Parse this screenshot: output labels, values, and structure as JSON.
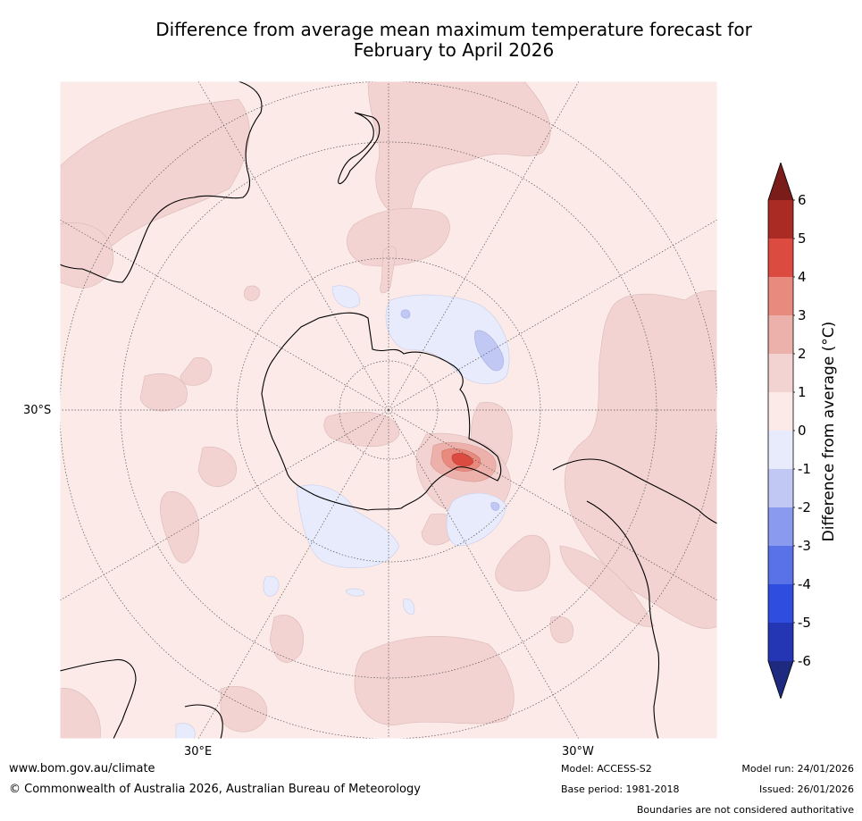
{
  "title": {
    "line1": "Difference from average mean maximum temperature forecast for",
    "line2": "February to April 2026"
  },
  "map": {
    "projection": "south-polar-stereographic",
    "lat_label": "30°S",
    "lon_labels": {
      "east": "30°E",
      "west": "30°W"
    },
    "anomaly_regions": [
      {
        "region": "most of domain",
        "range": "0 to 1"
      },
      {
        "region": "Pacific Ocean east of New Zealand",
        "range": "1 to 2"
      },
      {
        "region": "South Pacific near South America",
        "range": "1 to 2"
      },
      {
        "region": "Antarctic Peninsula / Bellingshausen Sea",
        "range": "2 to 4"
      },
      {
        "region": "Ross Sea area",
        "range": "-1 to 0"
      },
      {
        "region": "Ross Sea embayment spot",
        "range": "-2 to -1"
      },
      {
        "region": "Weddell / East Antarctic coast",
        "range": "-1 to 0"
      }
    ]
  },
  "colorbar": {
    "label": "Difference from average (°C)",
    "ticks": [
      "6",
      "5",
      "4",
      "3",
      "2",
      "1",
      "0",
      "-1",
      "-2",
      "-3",
      "-4",
      "-5",
      "-6"
    ],
    "colors": {
      "over": "#7a1d1a",
      "b5_6": "#aa2b24",
      "b4_5": "#dc4b40",
      "b3_4": "#e88a7e",
      "b2_3": "#edb1ab",
      "b1_2": "#f3d3d2",
      "b0_1": "#fbeae8",
      "bm1_0": "#e8ebfb",
      "bm2_m1": "#c1c8f3",
      "bm3_m2": "#8a9bef",
      "bm4_m3": "#5a72e8",
      "bm5_m4": "#2f4ee0",
      "bm6_m5": "#2536b5",
      "under": "#1d2a80"
    }
  },
  "footer": {
    "website": "www.bom.gov.au/climate",
    "copyright": "© Commonwealth of Australia 2026, Australian Bureau of Meteorology",
    "model": "Model: ACCESS-S2",
    "base_period": "Base period: 1981-2018",
    "model_run": "Model run: 24/01/2026",
    "issued": "Issued: 26/01/2026",
    "disclaimer": "Boundaries are not considered authoritative"
  }
}
